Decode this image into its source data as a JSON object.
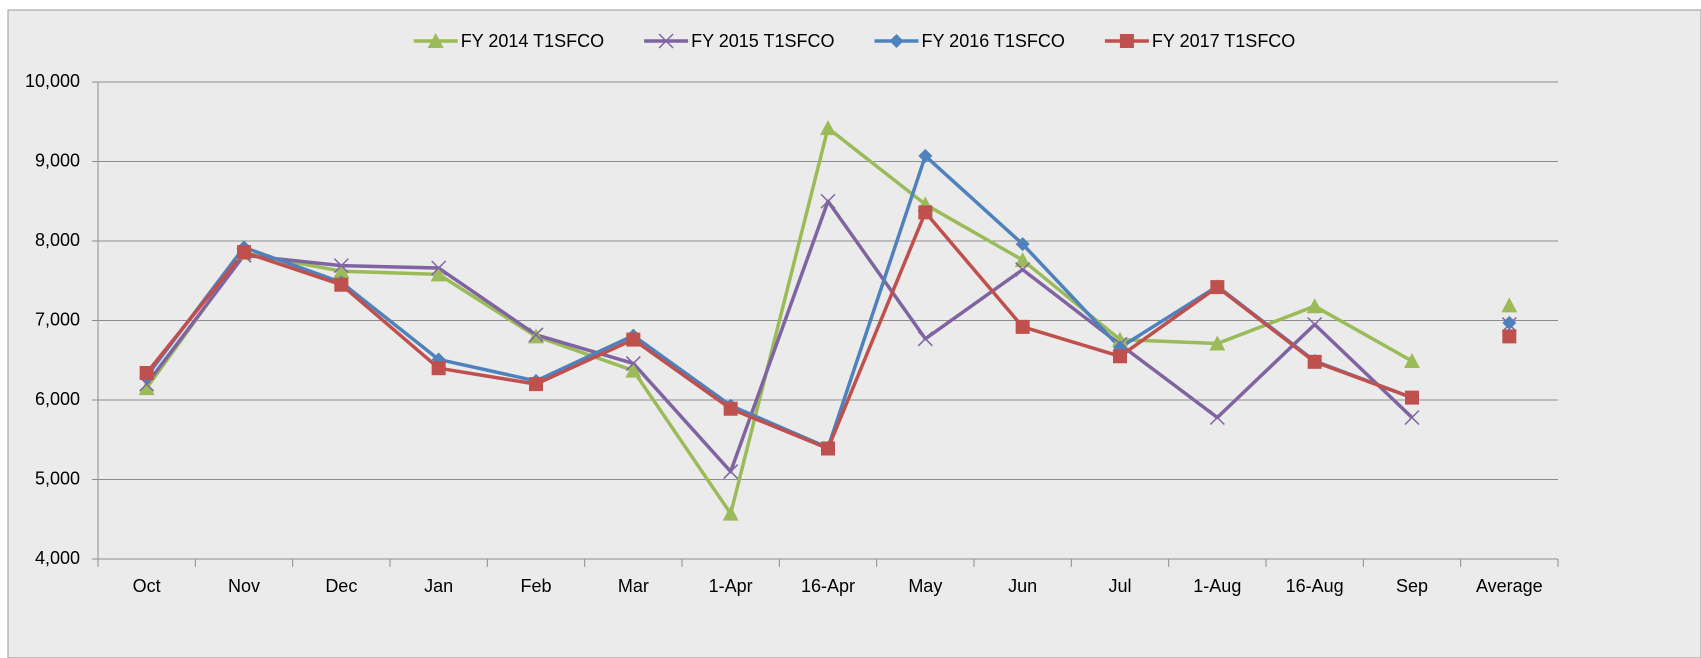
{
  "chart_data": {
    "type": "line",
    "categories": [
      "Oct",
      "Nov",
      "Dec",
      "Jan",
      "Feb",
      "Mar",
      "1-Apr",
      "16-Apr",
      "May",
      "Jun",
      "Jul",
      "1-Aug",
      "16-Aug",
      "Sep",
      "Average"
    ],
    "series": [
      {
        "name": "FY 2014 T1SFCO",
        "color": "#9bbb59",
        "marker": "triangle",
        "values": [
          6150,
          7850,
          7620,
          7580,
          6800,
          6370,
          4570,
          9420,
          8460,
          7760,
          6760,
          6710,
          7180,
          6490,
          7190
        ]
      },
      {
        "name": "FY 2015 T1SFCO",
        "color": "#8064a2",
        "marker": "x",
        "values": [
          6200,
          7820,
          7690,
          7660,
          6820,
          6460,
          5100,
          8500,
          6770,
          7640,
          6700,
          5780,
          6950,
          5780,
          6950
        ]
      },
      {
        "name": "FY 2016 T1SFCO",
        "color": "#4f81bd",
        "marker": "diamond",
        "values": [
          6300,
          7920,
          7480,
          6510,
          6240,
          6810,
          5930,
          5400,
          9070,
          7960,
          6660,
          7430,
          6490,
          6030,
          6970
        ]
      },
      {
        "name": "FY 2017 T1SFCO",
        "color": "#c0504d",
        "marker": "square",
        "values": [
          6340,
          7860,
          7450,
          6400,
          6200,
          6760,
          5890,
          5390,
          8360,
          6920,
          6550,
          7420,
          6480,
          6030,
          6800
        ]
      }
    ],
    "connect_last_point": false,
    "ylim": [
      4000,
      10000
    ],
    "yticks": [
      {
        "value": 4000,
        "label": "4,000"
      },
      {
        "value": 5000,
        "label": "5,000"
      },
      {
        "value": 6000,
        "label": "6,000"
      },
      {
        "value": 7000,
        "label": "7,000"
      },
      {
        "value": 8000,
        "label": "8,000"
      },
      {
        "value": 9000,
        "label": "9,000"
      },
      {
        "value": 10000,
        "label": "10,000"
      }
    ],
    "grid": true,
    "legend": "top"
  }
}
